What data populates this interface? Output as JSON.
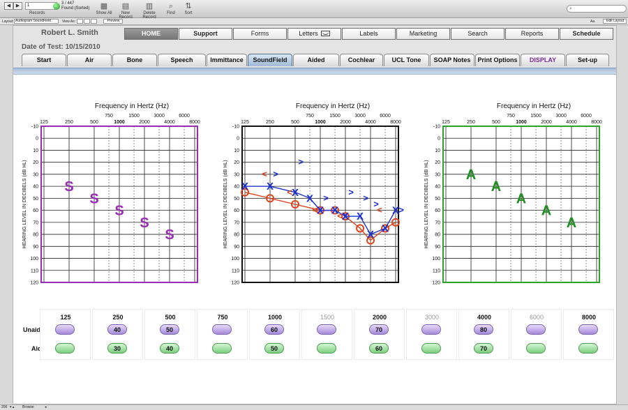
{
  "toolbar": {
    "record_number": "1",
    "records_label": "Records",
    "found_count": "3 / 447",
    "found_status": "Found (Sorted)",
    "show_all": "Show All",
    "new_record": "New Record",
    "delete_record": "Delete Record",
    "find": "Find",
    "sort": "Sort"
  },
  "layout_bar": {
    "layout_label": "Layout:",
    "layout_value": "Audiogram SoundField",
    "view_as": "View As:",
    "preview": "Preview",
    "aa": "Aa",
    "edit_layout": "Edit Layout"
  },
  "patient": {
    "name": "Robert L. Smith",
    "date_of_test": "Date of Test: 10/15/2010"
  },
  "nav_tabs": [
    "HOME",
    "Support",
    "Forms",
    "Letters",
    "Labels",
    "Marketing",
    "Search",
    "Reports",
    "Schedule"
  ],
  "sub_tabs": [
    "Start",
    "Air",
    "Bone",
    "Speech",
    "Immittance",
    "SoundField",
    "Aided",
    "Cochlear",
    "UCL Tone",
    "SOAP Notes",
    "Print Options",
    "DISPLAY",
    "Set-up"
  ],
  "charts": {
    "title": "Frequency in Hertz (Hz)",
    "ylabel": "HEARING LEVEL IN DECIBELS (dB HL)",
    "freq_top": [
      "750",
      "1500",
      "3000",
      "6000"
    ],
    "freq_bottom": [
      "125",
      "250",
      "500",
      "1000",
      "2000",
      "4000",
      "8000"
    ],
    "db_ticks": [
      "-10",
      "0",
      "10",
      "20",
      "30",
      "40",
      "50",
      "60",
      "70",
      "80",
      "90",
      "100",
      "110",
      "120"
    ],
    "left_color": "#9a2bb5",
    "middle_color": "#111111",
    "right_color": "#2aa52a"
  },
  "chart_data": [
    {
      "type": "scatter",
      "title": "Frequency in Hertz (Hz)",
      "ylabel": "HEARING LEVEL IN DECIBELS (dB HL)",
      "ylim": [
        -10,
        120
      ],
      "series": [
        {
          "name": "S",
          "x": [
            250,
            500,
            1000,
            2000,
            4000
          ],
          "y": [
            40,
            50,
            60,
            70,
            80
          ]
        }
      ]
    },
    {
      "type": "line",
      "title": "Frequency in Hertz (Hz)",
      "ylabel": "HEARING LEVEL IN DECIBELS (dB HL)",
      "ylim": [
        -10,
        120
      ],
      "series": [
        {
          "name": "X",
          "x": [
            125,
            250,
            500,
            750,
            1000,
            1500,
            2000,
            3000,
            4000,
            6000,
            8000
          ],
          "y": [
            40,
            40,
            45,
            50,
            60,
            60,
            65,
            65,
            80,
            75,
            60
          ]
        },
        {
          "name": "O",
          "x": [
            125,
            250,
            500,
            1000,
            1500,
            2000,
            3000,
            4000,
            6000,
            8000
          ],
          "y": [
            45,
            50,
            55,
            60,
            60,
            65,
            75,
            85,
            75,
            70
          ]
        },
        {
          "name": ">",
          "x": [
            250,
            500,
            1000,
            2000,
            3000,
            4000,
            8000
          ],
          "y": [
            30,
            20,
            50,
            45,
            50,
            55,
            60
          ]
        },
        {
          "name": "<",
          "x": [
            250,
            500,
            1000,
            2000,
            6000
          ],
          "y": [
            30,
            45,
            60,
            65,
            60
          ]
        }
      ]
    },
    {
      "type": "scatter",
      "title": "Frequency in Hertz (Hz)",
      "ylabel": "HEARING LEVEL IN DECIBELS (dB HL)",
      "ylim": [
        -10,
        120
      ],
      "series": [
        {
          "name": "A",
          "x": [
            250,
            500,
            1000,
            2000,
            4000
          ],
          "y": [
            30,
            40,
            50,
            60,
            70
          ]
        }
      ]
    }
  ],
  "table": {
    "row_unaided": "Unaided",
    "row_aided": "Aided",
    "columns": [
      {
        "freq": "125",
        "unaided": "",
        "aided": "",
        "dim": false
      },
      {
        "freq": "250",
        "unaided": "40",
        "aided": "30",
        "dim": false
      },
      {
        "freq": "500",
        "unaided": "50",
        "aided": "40",
        "dim": false
      },
      {
        "freq": "750",
        "unaided": "",
        "aided": "",
        "dim": false
      },
      {
        "freq": "1000",
        "unaided": "60",
        "aided": "50",
        "dim": false
      },
      {
        "freq": "1500",
        "unaided": "",
        "aided": "",
        "dim": true
      },
      {
        "freq": "2000",
        "unaided": "70",
        "aided": "60",
        "dim": false
      },
      {
        "freq": "3000",
        "unaided": "",
        "aided": "",
        "dim": true
      },
      {
        "freq": "4000",
        "unaided": "80",
        "aided": "70",
        "dim": false
      },
      {
        "freq": "6000",
        "unaided": "",
        "aided": "",
        "dim": true
      },
      {
        "freq": "8000",
        "unaided": "",
        "aided": "",
        "dim": false
      }
    ]
  },
  "statusbar": {
    "zoom": "200",
    "mode": "Browse"
  }
}
